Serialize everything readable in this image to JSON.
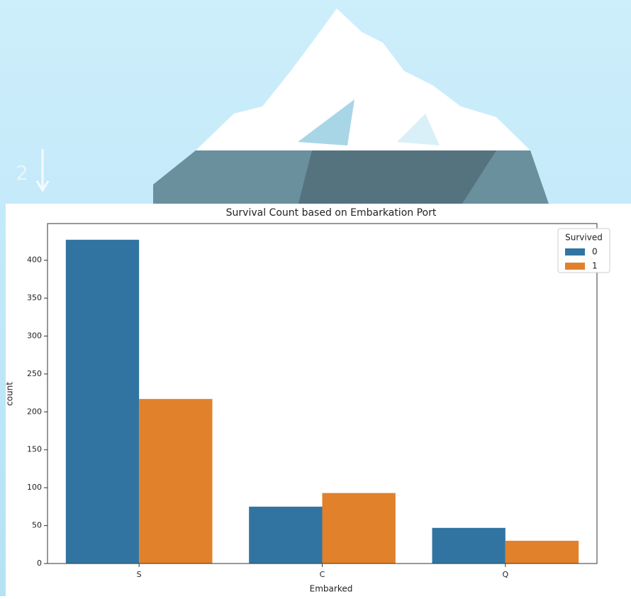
{
  "slide_number": "2",
  "chart_data": {
    "type": "bar",
    "title": "Survival Count based on Embarkation Port",
    "x_label": "Embarked",
    "y_label": "count",
    "categories": [
      "S",
      "C",
      "Q"
    ],
    "series": [
      {
        "name": "0",
        "color": "#3274a1",
        "values": [
          427,
          75,
          47
        ]
      },
      {
        "name": "1",
        "color": "#e1812c",
        "values": [
          217,
          93,
          30
        ]
      }
    ],
    "legend_title": "Survived",
    "legend": "upper right",
    "ylim": [
      0,
      448.35
    ],
    "yticks": [
      0,
      50,
      100,
      150,
      200,
      250,
      300,
      350,
      400
    ],
    "grid": false
  }
}
